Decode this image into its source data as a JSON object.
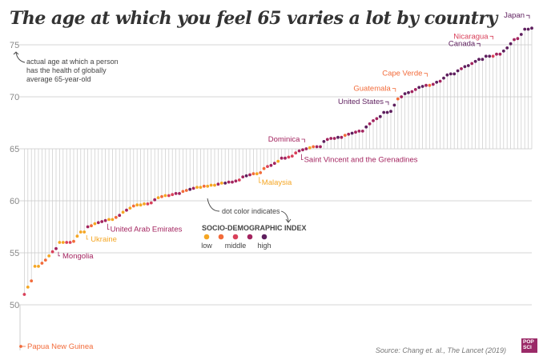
{
  "chart_data": {
    "type": "scatter",
    "title": "The age at which you feel 65 varies a lot by country",
    "xlabel": "",
    "ylabel": "actual age at which a person has the health of globally average 65-year-old",
    "ylim": [
      46,
      76.5
    ],
    "yticks": [
      50,
      55,
      60,
      65,
      70,
      75
    ],
    "grid": true,
    "legend": {
      "title": "SOCIO-DEMOGRAPHIC INDEX",
      "placement": "center",
      "entries": [
        {
          "label": "low",
          "color": "#f5a623"
        },
        {
          "label": "",
          "color": "#f26b3a"
        },
        {
          "label": "middle",
          "color": "#d9405a"
        },
        {
          "label": "",
          "color": "#a3245f"
        },
        {
          "label": "high",
          "color": "#5e1f5e"
        }
      ]
    },
    "sdi_colors": [
      "#f5a623",
      "#f26b3a",
      "#d9405a",
      "#a3245f",
      "#5e1f5e"
    ],
    "points": [
      {
        "v": 46.0,
        "s": 1,
        "label": "Papua New Guinea"
      },
      {
        "v": 51.0,
        "s": 2
      },
      {
        "v": 51.7,
        "s": 0
      },
      {
        "v": 52.3,
        "s": 1
      },
      {
        "v": 53.7,
        "s": 0
      },
      {
        "v": 53.7,
        "s": 0
      },
      {
        "v": 54.0,
        "s": 1
      },
      {
        "v": 54.3,
        "s": 1
      },
      {
        "v": 54.7,
        "s": 0
      },
      {
        "v": 55.1,
        "s": 2
      },
      {
        "v": 55.4,
        "s": 3,
        "label": "Mongolia"
      },
      {
        "v": 56.0,
        "s": 0
      },
      {
        "v": 56.0,
        "s": 0
      },
      {
        "v": 56.0,
        "s": 2
      },
      {
        "v": 56.0,
        "s": 2
      },
      {
        "v": 56.1,
        "s": 1
      },
      {
        "v": 56.6,
        "s": 0
      },
      {
        "v": 57.0,
        "s": 0
      },
      {
        "v": 57.0,
        "s": 0,
        "label": "Ukraine"
      },
      {
        "v": 57.5,
        "s": 3
      },
      {
        "v": 57.6,
        "s": 1
      },
      {
        "v": 57.8,
        "s": 0
      },
      {
        "v": 57.9,
        "s": 3
      },
      {
        "v": 58.0,
        "s": 3
      },
      {
        "v": 58.1,
        "s": 3,
        "label": "United Arab Emirates"
      },
      {
        "v": 58.2,
        "s": 0
      },
      {
        "v": 58.2,
        "s": 0
      },
      {
        "v": 58.4,
        "s": 1
      },
      {
        "v": 58.6,
        "s": 3
      },
      {
        "v": 58.9,
        "s": 0
      },
      {
        "v": 59.1,
        "s": 3
      },
      {
        "v": 59.3,
        "s": 0
      },
      {
        "v": 59.5,
        "s": 1
      },
      {
        "v": 59.6,
        "s": 0
      },
      {
        "v": 59.6,
        "s": 0
      },
      {
        "v": 59.7,
        "s": 0
      },
      {
        "v": 59.7,
        "s": 2
      },
      {
        "v": 59.8,
        "s": 2
      },
      {
        "v": 60.1,
        "s": 3
      },
      {
        "v": 60.3,
        "s": 0
      },
      {
        "v": 60.4,
        "s": 1
      },
      {
        "v": 60.5,
        "s": 0
      },
      {
        "v": 60.5,
        "s": 2
      },
      {
        "v": 60.6,
        "s": 2
      },
      {
        "v": 60.7,
        "s": 3
      },
      {
        "v": 60.7,
        "s": 3
      },
      {
        "v": 60.9,
        "s": 1
      },
      {
        "v": 61.0,
        "s": 1
      },
      {
        "v": 61.1,
        "s": 4
      },
      {
        "v": 61.2,
        "s": 3
      },
      {
        "v": 61.3,
        "s": 0
      },
      {
        "v": 61.3,
        "s": 0
      },
      {
        "v": 61.4,
        "s": 1
      },
      {
        "v": 61.4,
        "s": 0
      },
      {
        "v": 61.5,
        "s": 0
      },
      {
        "v": 61.5,
        "s": 0
      },
      {
        "v": 61.6,
        "s": 3
      },
      {
        "v": 61.7,
        "s": 0
      },
      {
        "v": 61.7,
        "s": 4
      },
      {
        "v": 61.8,
        "s": 3
      },
      {
        "v": 61.8,
        "s": 3
      },
      {
        "v": 61.9,
        "s": 3
      },
      {
        "v": 62.0,
        "s": 2
      },
      {
        "v": 62.3,
        "s": 3
      },
      {
        "v": 62.4,
        "s": 4
      },
      {
        "v": 62.5,
        "s": 3
      },
      {
        "v": 62.6,
        "s": 1
      },
      {
        "v": 62.6,
        "s": 0,
        "label": "Malaysia"
      },
      {
        "v": 62.7,
        "s": 1
      },
      {
        "v": 63.1,
        "s": 1
      },
      {
        "v": 63.3,
        "s": 2
      },
      {
        "v": 63.4,
        "s": 3
      },
      {
        "v": 63.6,
        "s": 3
      },
      {
        "v": 63.8,
        "s": 0
      },
      {
        "v": 64.1,
        "s": 3
      },
      {
        "v": 64.1,
        "s": 3
      },
      {
        "v": 64.2,
        "s": 2
      },
      {
        "v": 64.3,
        "s": 2
      },
      {
        "v": 64.6,
        "s": 2
      },
      {
        "v": 64.8,
        "s": 3,
        "label": "Saint Vincent and the Grenadines"
      },
      {
        "v": 64.9,
        "s": 3
      },
      {
        "v": 65.0,
        "s": 3,
        "label": "Dominica"
      },
      {
        "v": 65.1,
        "s": 0
      },
      {
        "v": 65.2,
        "s": 1
      },
      {
        "v": 65.2,
        "s": 3
      },
      {
        "v": 65.2,
        "s": 3
      },
      {
        "v": 65.7,
        "s": 4
      },
      {
        "v": 65.9,
        "s": 3
      },
      {
        "v": 66.0,
        "s": 3
      },
      {
        "v": 66.0,
        "s": 3
      },
      {
        "v": 66.1,
        "s": 4
      },
      {
        "v": 66.1,
        "s": 3
      },
      {
        "v": 66.3,
        "s": 1
      },
      {
        "v": 66.4,
        "s": 3
      },
      {
        "v": 66.5,
        "s": 4
      },
      {
        "v": 66.6,
        "s": 3
      },
      {
        "v": 66.7,
        "s": 3
      },
      {
        "v": 66.7,
        "s": 3
      },
      {
        "v": 67.1,
        "s": 4
      },
      {
        "v": 67.4,
        "s": 3
      },
      {
        "v": 67.7,
        "s": 3
      },
      {
        "v": 67.9,
        "s": 3
      },
      {
        "v": 68.1,
        "s": 4
      },
      {
        "v": 68.5,
        "s": 4
      },
      {
        "v": 68.5,
        "s": 4
      },
      {
        "v": 68.6,
        "s": 4,
        "label": "United States"
      },
      {
        "v": 69.2,
        "s": 4
      },
      {
        "v": 69.8,
        "s": 1,
        "label": "Guatemala"
      },
      {
        "v": 70.0,
        "s": 3
      },
      {
        "v": 70.3,
        "s": 4
      },
      {
        "v": 70.4,
        "s": 4
      },
      {
        "v": 70.5,
        "s": 3
      },
      {
        "v": 70.7,
        "s": 3
      },
      {
        "v": 70.9,
        "s": 4
      },
      {
        "v": 71.0,
        "s": 4
      },
      {
        "v": 71.1,
        "s": 3
      },
      {
        "v": 71.1,
        "s": 1,
        "label": "Cape Verde"
      },
      {
        "v": 71.2,
        "s": 3
      },
      {
        "v": 71.4,
        "s": 4
      },
      {
        "v": 71.5,
        "s": 3
      },
      {
        "v": 71.8,
        "s": 4
      },
      {
        "v": 72.1,
        "s": 4
      },
      {
        "v": 72.2,
        "s": 4
      },
      {
        "v": 72.2,
        "s": 4
      },
      {
        "v": 72.5,
        "s": 4
      },
      {
        "v": 72.7,
        "s": 3
      },
      {
        "v": 72.9,
        "s": 4
      },
      {
        "v": 73.0,
        "s": 4
      },
      {
        "v": 73.2,
        "s": 3
      },
      {
        "v": 73.4,
        "s": 4
      },
      {
        "v": 73.6,
        "s": 4
      },
      {
        "v": 73.6,
        "s": 4
      },
      {
        "v": 73.9,
        "s": 4
      },
      {
        "v": 73.9,
        "s": 4,
        "label": "Canada"
      },
      {
        "v": 73.9,
        "s": 2,
        "label": "Nicaragua"
      },
      {
        "v": 74.1,
        "s": 3
      },
      {
        "v": 74.1,
        "s": 3
      },
      {
        "v": 74.4,
        "s": 4
      },
      {
        "v": 74.7,
        "s": 4
      },
      {
        "v": 75.1,
        "s": 4
      },
      {
        "v": 75.5,
        "s": 3
      },
      {
        "v": 75.6,
        "s": 3
      },
      {
        "v": 76.0,
        "s": 4
      },
      {
        "v": 76.5,
        "s": 4
      },
      {
        "v": 76.5,
        "s": 4
      },
      {
        "v": 76.6,
        "s": 4,
        "label": "Japan"
      }
    ],
    "annotations": [
      {
        "text": [
          "actual age at which a person",
          "has the health of globally",
          "average 65-year-old"
        ]
      },
      {
        "text": [
          "dot color indicates"
        ]
      }
    ]
  },
  "source": "Source: Chang et. al., The Lancet (2019)",
  "logo": [
    "POP",
    "SCI"
  ]
}
